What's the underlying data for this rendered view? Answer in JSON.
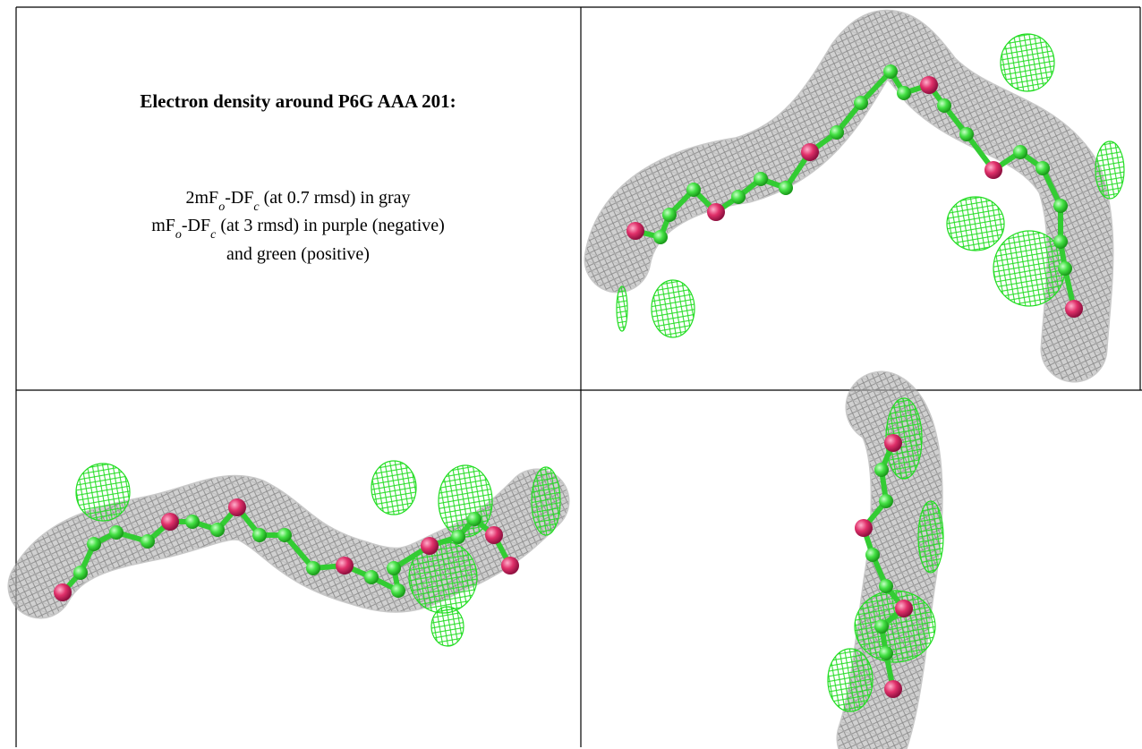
{
  "title": "Electron density around P6G AAA 201:",
  "caption": {
    "lines": [
      [
        "2mF",
        "o",
        "-DF",
        "c",
        " (at 0.7 rmsd) in gray"
      ],
      [
        "mF",
        "o",
        "-DF",
        "c",
        " (at 3 rmsd) in purple (negative)"
      ],
      [
        "and green (positive)"
      ]
    ]
  }
}
